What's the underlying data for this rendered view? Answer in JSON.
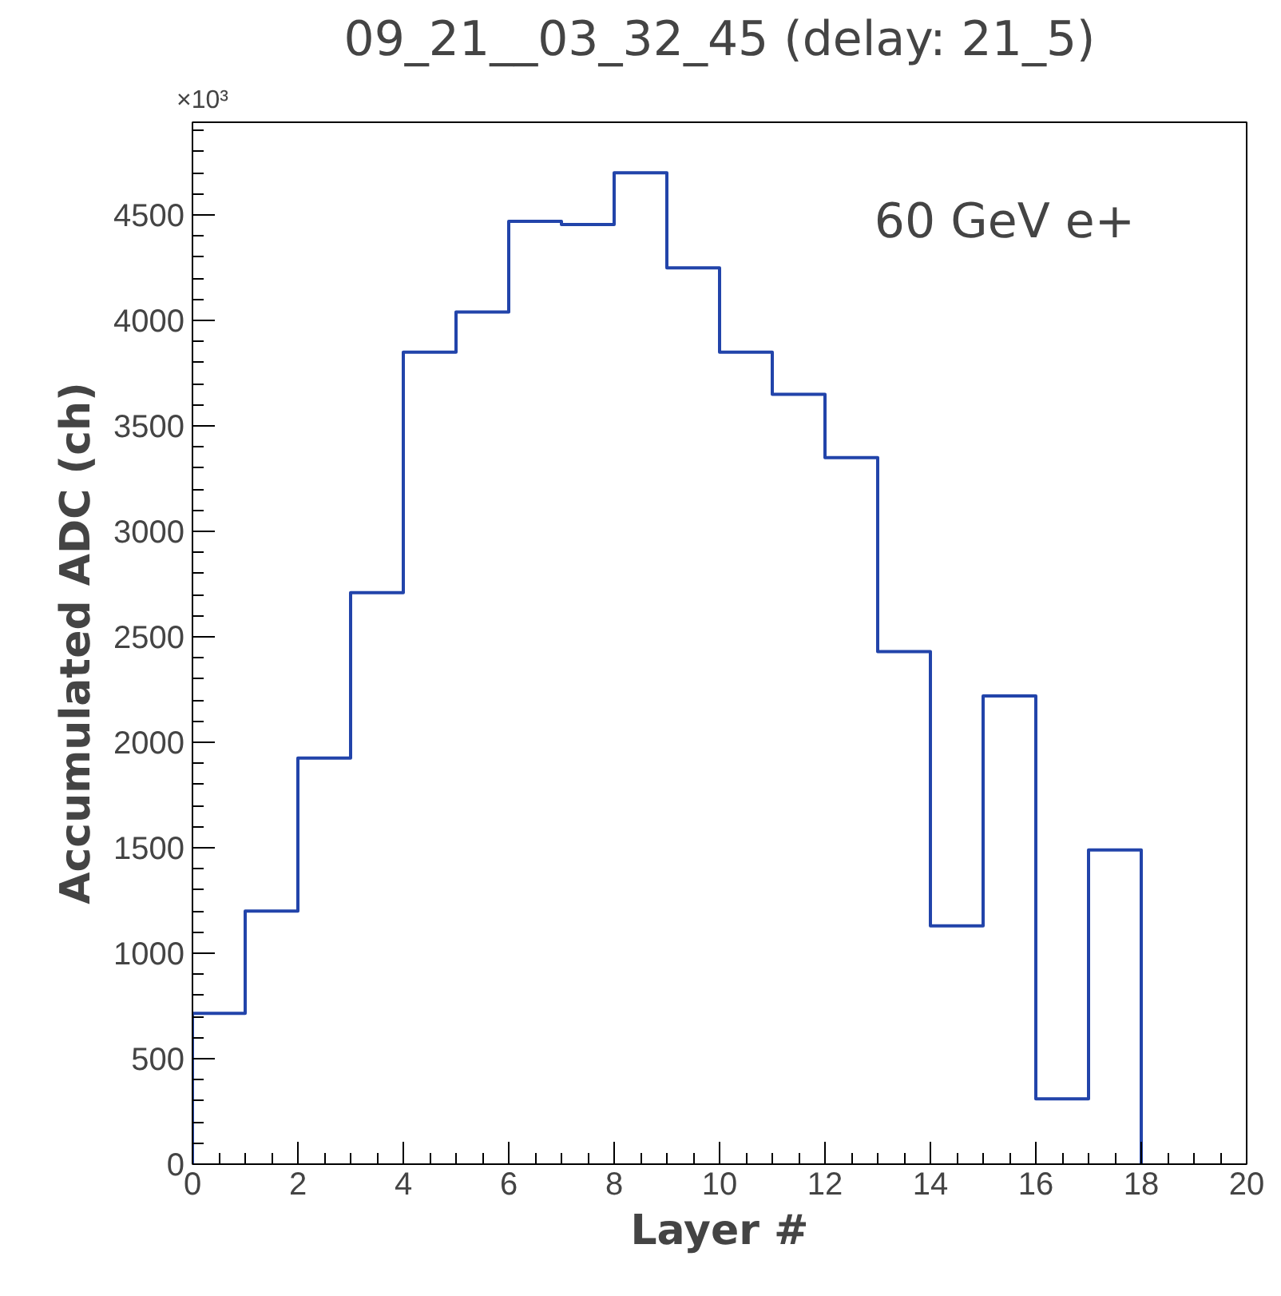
{
  "chart_data": {
    "type": "histogram",
    "title": "09_21__03_32_45 (delay: 21_5)",
    "xlabel": "Layer #",
    "ylabel": "Accumulated ADC (ch)",
    "bins": [
      0,
      1,
      2,
      3,
      4,
      5,
      6,
      7,
      8,
      9,
      10,
      11,
      12,
      13,
      14,
      15,
      16,
      17,
      18
    ],
    "values": [
      715,
      1200,
      1925,
      2710,
      3850,
      4040,
      4470,
      4455,
      4700,
      4250,
      3850,
      3650,
      3350,
      2430,
      1130,
      2220,
      310,
      1490
    ],
    "color": "#2244aa",
    "xlim": [
      0,
      20
    ],
    "xticks": [
      0,
      2,
      4,
      6,
      8,
      10,
      12,
      14,
      16,
      18,
      20
    ],
    "ylim": [
      0,
      4940
    ],
    "yticks": [
      0,
      500,
      1000,
      1500,
      2000,
      2500,
      3000,
      3500,
      4000,
      4500
    ],
    "annotations": [
      "×10³",
      "60 GeV e+"
    ],
    "grid": false
  }
}
